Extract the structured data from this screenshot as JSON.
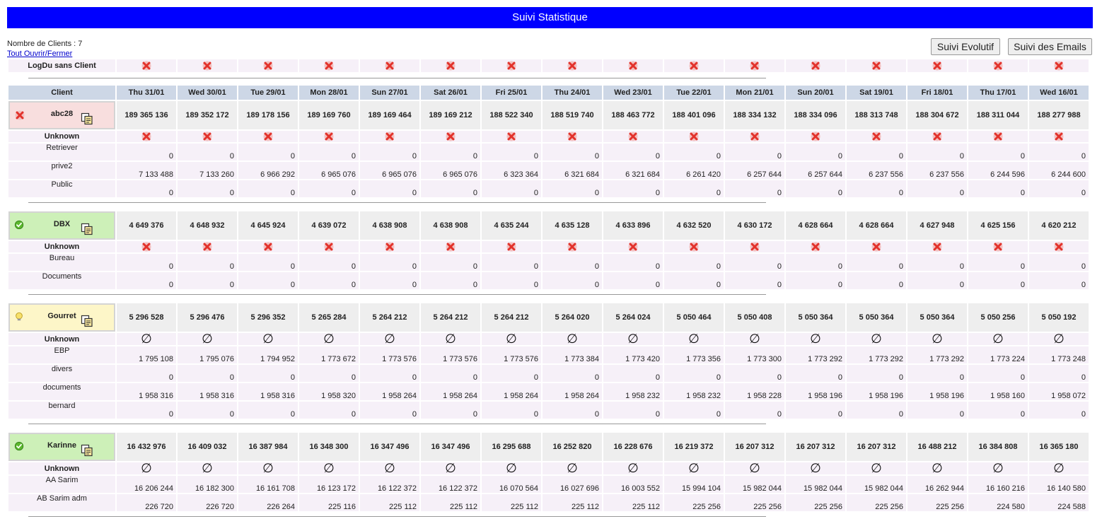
{
  "app": {
    "title": "Suivi Statistique"
  },
  "info": {
    "count_label": "Nombre de Clients : 7",
    "toggle_link": "Tout Ouvrir/Fermer"
  },
  "buttons": {
    "evolutif": "Suivi Evolutif",
    "emails": "Suivi des Emails"
  },
  "colors": {
    "titlebar": "#0000ff",
    "header": "#cdd7e6",
    "total": "#eeeeee",
    "subrow": "#f6f0f8",
    "red": "#f8dede",
    "green": "#cdf0b8",
    "yellow": "#fdf6c8"
  },
  "logdu": {
    "label": "LogDu sans Client",
    "icon": "red-x-icon"
  },
  "table": {
    "client_header": "Client",
    "dates": [
      "Thu 31/01",
      "Wed 30/01",
      "Tue 29/01",
      "Mon 28/01",
      "Sun 27/01",
      "Sat 26/01",
      "Fri 25/01",
      "Thu 24/01",
      "Wed 23/01",
      "Tue 22/01",
      "Mon 21/01",
      "Sun 20/01",
      "Sat 19/01",
      "Fri 18/01",
      "Thu 17/01",
      "Wed 16/01"
    ],
    "unknown_label": "Unknown",
    "clients": [
      {
        "name": "abc28",
        "status": "error",
        "status_icon": "red-x-icon",
        "bg": "red",
        "unknown": "x",
        "totals": [
          "189 365 136",
          "189 352 172",
          "189 178 156",
          "189 169 760",
          "189 169 464",
          "189 169 212",
          "188 522 340",
          "188 519 740",
          "188 463 772",
          "188 401 096",
          "188 334 132",
          "188 334 096",
          "188 313 748",
          "188 304 672",
          "188 311 044",
          "188 277 988"
        ],
        "subs": [
          {
            "name": "Retriever",
            "values": [
              "0",
              "0",
              "0",
              "0",
              "0",
              "0",
              "0",
              "0",
              "0",
              "0",
              "0",
              "0",
              "0",
              "0",
              "0",
              "0"
            ]
          },
          {
            "name": "prive2",
            "values": [
              "7 133 488",
              "7 133 260",
              "6 966 292",
              "6 965 076",
              "6 965 076",
              "6 965 076",
              "6 323 364",
              "6 321 684",
              "6 321 684",
              "6 261 420",
              "6 257 644",
              "6 257 644",
              "6 237 556",
              "6 237 556",
              "6 244 596",
              "6 244 600"
            ]
          },
          {
            "name": "Public",
            "values": [
              "0",
              "0",
              "0",
              "0",
              "0",
              "0",
              "0",
              "0",
              "0",
              "0",
              "0",
              "0",
              "0",
              "0",
              "0",
              "0"
            ]
          }
        ]
      },
      {
        "name": "DBX",
        "status": "ok",
        "status_icon": "green-check-icon",
        "bg": "green",
        "unknown": "x",
        "totals": [
          "4 649 376",
          "4 648 932",
          "4 645 924",
          "4 639 072",
          "4 638 908",
          "4 638 908",
          "4 635 244",
          "4 635 128",
          "4 633 896",
          "4 632 520",
          "4 630 172",
          "4 628 664",
          "4 628 664",
          "4 627 948",
          "4 625 156",
          "4 620 212"
        ],
        "subs": [
          {
            "name": "Bureau",
            "values": [
              "0",
              "0",
              "0",
              "0",
              "0",
              "0",
              "0",
              "0",
              "0",
              "0",
              "0",
              "0",
              "0",
              "0",
              "0",
              "0"
            ]
          },
          {
            "name": "Documents",
            "values": [
              "0",
              "0",
              "0",
              "0",
              "0",
              "0",
              "0",
              "0",
              "0",
              "0",
              "0",
              "0",
              "0",
              "0",
              "0",
              "0"
            ]
          }
        ]
      },
      {
        "name": "Gourret",
        "status": "warning",
        "status_icon": "lightbulb-icon",
        "bg": "yellow",
        "unknown": "empty",
        "totals": [
          "5 296 528",
          "5 296 476",
          "5 296 352",
          "5 265 284",
          "5 264 212",
          "5 264 212",
          "5 264 212",
          "5 264 020",
          "5 264 024",
          "5 050 464",
          "5 050 408",
          "5 050 364",
          "5 050 364",
          "5 050 364",
          "5 050 256",
          "5 050 192"
        ],
        "subs": [
          {
            "name": "EBP",
            "values": [
              "1 795 108",
              "1 795 076",
              "1 794 952",
              "1 773 672",
              "1 773 576",
              "1 773 576",
              "1 773 576",
              "1 773 384",
              "1 773 420",
              "1 773 356",
              "1 773 300",
              "1 773 292",
              "1 773 292",
              "1 773 292",
              "1 773 224",
              "1 773 248"
            ]
          },
          {
            "name": "divers",
            "values": [
              "0",
              "0",
              "0",
              "0",
              "0",
              "0",
              "0",
              "0",
              "0",
              "0",
              "0",
              "0",
              "0",
              "0",
              "0",
              "0"
            ]
          },
          {
            "name": "documents",
            "values": [
              "1 958 316",
              "1 958 316",
              "1 958 316",
              "1 958 320",
              "1 958 264",
              "1 958 264",
              "1 958 264",
              "1 958 264",
              "1 958 232",
              "1 958 232",
              "1 958 228",
              "1 958 196",
              "1 958 196",
              "1 958 196",
              "1 958 160",
              "1 958 072"
            ]
          },
          {
            "name": "bernard",
            "values": [
              "0",
              "0",
              "0",
              "0",
              "0",
              "0",
              "0",
              "0",
              "0",
              "0",
              "0",
              "0",
              "0",
              "0",
              "0",
              "0"
            ]
          }
        ]
      },
      {
        "name": "Karinne",
        "status": "ok",
        "status_icon": "green-check-icon",
        "bg": "green",
        "unknown": "empty",
        "totals": [
          "16 432 976",
          "16 409 032",
          "16 387 984",
          "16 348 300",
          "16 347 496",
          "16 347 496",
          "16 295 688",
          "16 252 820",
          "16 228 676",
          "16 219 372",
          "16 207 312",
          "16 207 312",
          "16 207 312",
          "16 488 212",
          "16 384 808",
          "16 365 180"
        ],
        "subs": [
          {
            "name": "AA Sarim",
            "values": [
              "16 206 244",
              "16 182 300",
              "16 161 708",
              "16 123 172",
              "16 122 372",
              "16 122 372",
              "16 070 564",
              "16 027 696",
              "16 003 552",
              "15 994 104",
              "15 982 044",
              "15 982 044",
              "15 982 044",
              "16 262 944",
              "16 160 216",
              "16 140 580"
            ]
          },
          {
            "name": "AB Sarim adm",
            "values": [
              "226 720",
              "226 720",
              "226 264",
              "225 116",
              "225 112",
              "225 112",
              "225 112",
              "225 112",
              "225 112",
              "225 256",
              "225 256",
              "225 256",
              "225 256",
              "225 256",
              "224 580",
              "224 588"
            ]
          }
        ]
      }
    ]
  }
}
